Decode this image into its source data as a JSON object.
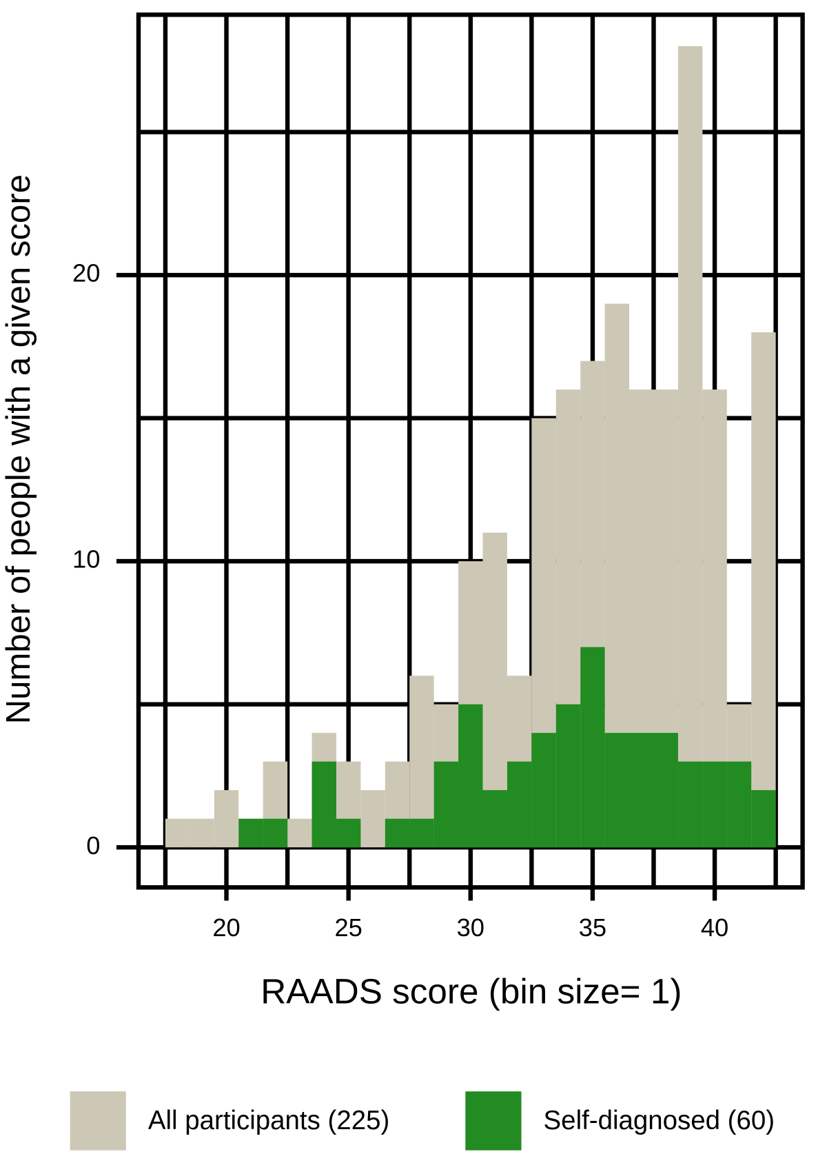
{
  "chart_data": {
    "type": "histogram",
    "xlabel": "RAADS score (bin size= 1)",
    "ylabel": "Number of people with a given score",
    "bins": [
      17.5,
      18.5,
      19.5,
      20.5,
      21.5,
      22.5,
      23.5,
      24.5,
      25.5,
      26.5,
      27.5,
      28.5,
      29.5,
      30.5,
      31.5,
      32.5,
      33.5,
      34.5,
      35.5,
      36.5,
      37.5,
      38.5,
      39.5,
      40.5,
      41.5,
      42.5
    ],
    "series": [
      {
        "name": "All participants (225)",
        "color": "#cdc8b5",
        "values": [
          1,
          1,
          2,
          1,
          3,
          1,
          4,
          3,
          2,
          3,
          6,
          5,
          10,
          11,
          6,
          15,
          16,
          17,
          19,
          16,
          16,
          28,
          16,
          5,
          18
        ]
      },
      {
        "name": "Self-diagnosed (60)",
        "color": "#228b22",
        "values": [
          0,
          0,
          0,
          1,
          1,
          0,
          3,
          1,
          0,
          1,
          1,
          3,
          5,
          2,
          3,
          4,
          5,
          7,
          4,
          4,
          4,
          3,
          3,
          3,
          2
        ]
      }
    ],
    "xlim": [
      16.4,
      43.6
    ],
    "ylim": [
      -1.4,
      29.1
    ],
    "xticks": [
      20,
      25,
      30,
      35,
      40
    ],
    "yticks": [
      0,
      10,
      20
    ],
    "x_minor_grid": [
      17.5,
      22.5,
      27.5,
      32.5,
      37.5,
      42.5
    ],
    "y_minor_grid": [
      5,
      15,
      25
    ],
    "grid": true,
    "legend": "bottom"
  }
}
